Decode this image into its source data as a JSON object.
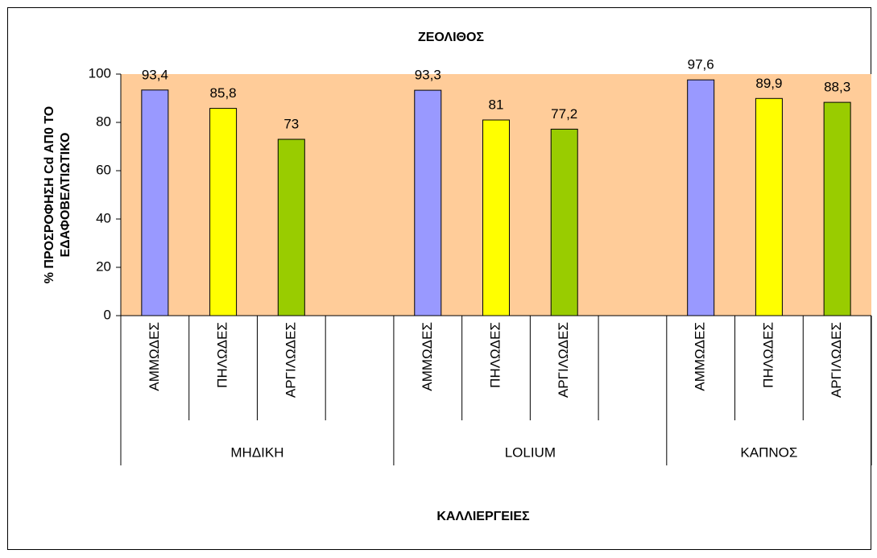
{
  "chart_data": {
    "type": "bar",
    "title": "ΖΕΟΛΙΘΟΣ",
    "ylabel": [
      "% ΠΡΟΣΡΟΦΗΣΗ Cd ΑΠ0 ΤΟ",
      "ΕΔΑΦΟΒΕΛΤΙΩΤΙΚΟ"
    ],
    "xlabel": "ΚΑΛΛΙΕΡΓΕΙΕΣ",
    "groups": [
      {
        "name": "ΜΗΔΙΚΗ",
        "categories": [
          "ΑΜΜΩΔΕΣ",
          "ΠΗΛΩΔΕΣ",
          "ΑΡΓΙΛΩΔΕΣ",
          null
        ]
      },
      {
        "name": "LOLIUM",
        "categories": [
          "ΑΜΜΩΔΕΣ",
          "ΠΗΛΩΔΕΣ",
          "ΑΡΓΙΛΩΔΕΣ",
          null
        ]
      },
      {
        "name": "ΚΑΠΝΟΣ",
        "categories": [
          "ΑΜΜΩΔΕΣ",
          "ΠΗΛΩΔΕΣ",
          "ΑΡΓΙΛΩΔΕΣ"
        ]
      }
    ],
    "values": [
      93.4,
      85.8,
      73,
      null,
      93.3,
      81,
      77.2,
      null,
      97.6,
      89.9,
      88.3
    ],
    "value_labels": [
      "93,4",
      "85,8",
      "73",
      null,
      "93,3",
      "81",
      "77,2",
      null,
      "97,6",
      "89,9",
      "88,3"
    ],
    "colors": [
      "#9999ff",
      "#ffff00",
      "#99cc00",
      null,
      "#9999ff",
      "#ffff00",
      "#99cc00",
      null,
      "#9999ff",
      "#ffff00",
      "#99cc00"
    ],
    "plot_background": "#ffcc99",
    "ylim": [
      0,
      100
    ],
    "yticks": [
      0,
      20,
      40,
      60,
      80,
      100
    ]
  }
}
